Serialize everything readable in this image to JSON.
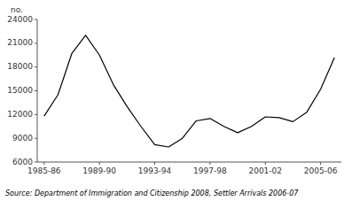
{
  "chart_data": {
    "type": "line",
    "ylabel": "no.",
    "source": "Source: Department of Immigration and Citizenship 2008, Settler Arrivals 2006-07",
    "categories": [
      "1985-86",
      null,
      null,
      null,
      "1989-90",
      null,
      null,
      null,
      "1993-94",
      null,
      null,
      null,
      "1997-98",
      null,
      null,
      null,
      "2001-02",
      null,
      null,
      null,
      "2005-06",
      null
    ],
    "values": [
      11800,
      14500,
      19700,
      22000,
      19500,
      15800,
      13000,
      10500,
      8200,
      7900,
      9000,
      11200,
      11500,
      10500,
      9700,
      10500,
      11700,
      11600,
      11100,
      12300,
      15200,
      19200
    ],
    "color": "#000000",
    "ylim": [
      6000,
      24000
    ],
    "yticks": [
      6000,
      9000,
      12000,
      15000,
      18000,
      21000,
      24000
    ],
    "grid": false
  }
}
